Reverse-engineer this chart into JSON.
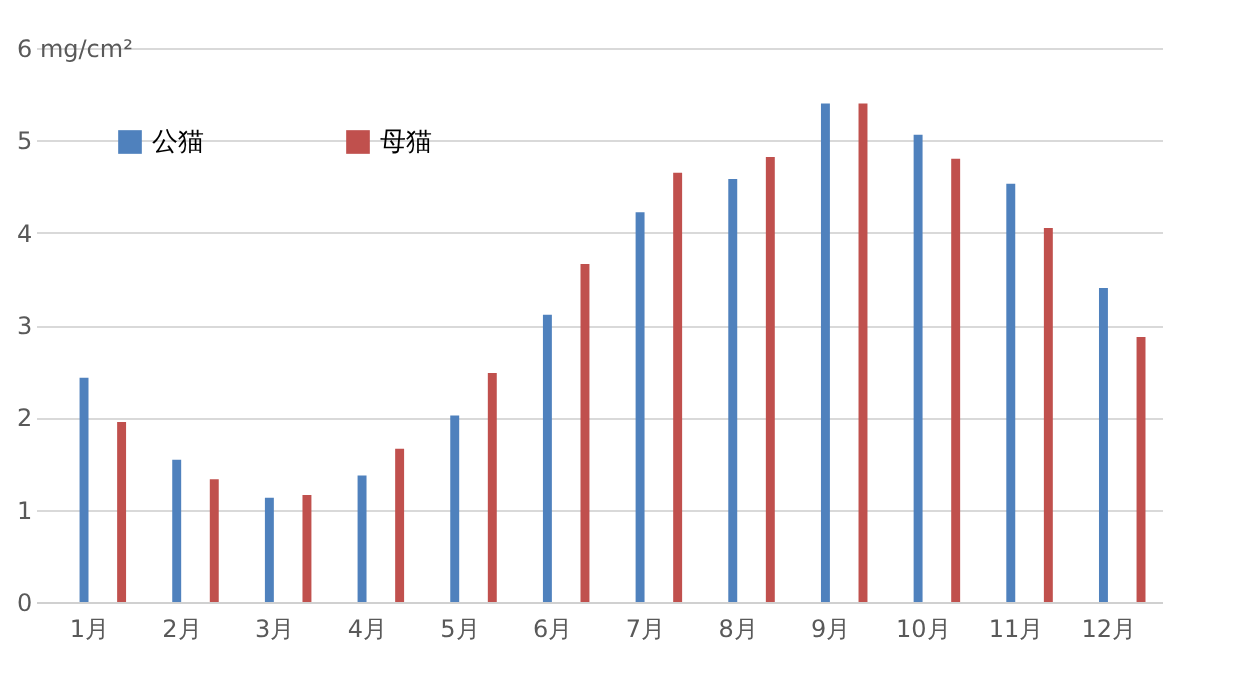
{
  "chart_data": {
    "type": "bar",
    "categories": [
      "1月",
      "2月",
      "3月",
      "4月",
      "5月",
      "6月",
      "7月",
      "8月",
      "9月",
      "10月",
      "11月",
      "12月"
    ],
    "series": [
      {
        "name": "公猫",
        "color": "#4f81bd",
        "values": [
          2.43,
          1.54,
          1.13,
          1.37,
          2.02,
          3.11,
          4.22,
          4.58,
          5.4,
          5.06,
          4.53,
          3.4
        ]
      },
      {
        "name": "母猫",
        "color": "#c0504d",
        "values": [
          1.95,
          1.33,
          1.16,
          1.66,
          2.48,
          3.66,
          4.65,
          4.82,
          5.4,
          4.8,
          4.05,
          2.87
        ]
      }
    ],
    "ylim": [
      0,
      6
    ],
    "yticks": [
      0,
      1,
      2,
      3,
      4,
      5,
      {
        "value": 6,
        "label": "6 mg/cm²"
      }
    ],
    "grid": "y",
    "legend": "top left"
  }
}
